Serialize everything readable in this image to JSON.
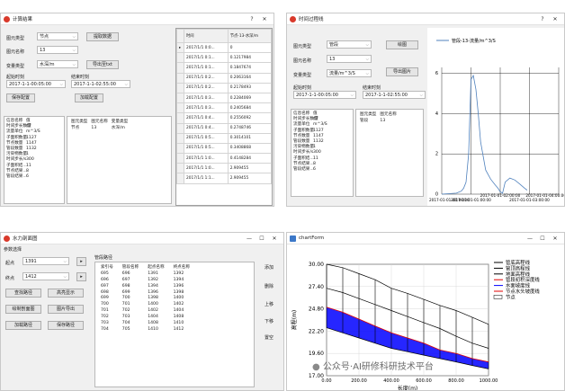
{
  "calc_window": {
    "title": "计算结果",
    "help": "?",
    "close": "✕",
    "element_type_label": "图元类型",
    "element_type_value": "节点",
    "extract_label": "提取数据",
    "element_name_label": "图元名称",
    "element_name_value": "13",
    "variable_label": "变量类型",
    "variable_value": "水深/m",
    "export_label": "导出至txt",
    "start_label": "起始时刻",
    "start_value": "2017-1-1-00:05:00",
    "end_label": "结束时刻",
    "end_value": "2017-1-1-02:55:00",
    "save_label": "保存配置",
    "load_label": "加载配置",
    "info": [
      {
        "k": "信息名称",
        "v": "值"
      },
      {
        "k": "时间步长数量",
        "v": "47"
      },
      {
        "k": "流量单位",
        "v": "m^3/S"
      },
      {
        "k": "子面积数量",
        "v": "1127"
      },
      {
        "k": "节点数量",
        "v": "1147"
      },
      {
        "k": "管段数量",
        "v": "1132"
      },
      {
        "k": "污染物数量",
        "v": "1"
      },
      {
        "k": "时间步长/s",
        "v": "300"
      },
      {
        "k": "子面积结...",
        "v": "11"
      },
      {
        "k": "节点结果...",
        "v": "8"
      },
      {
        "k": "管段结果...",
        "v": "6"
      }
    ],
    "sel_headers": [
      "图元类型",
      "图元名称",
      "变量类型"
    ],
    "sel_row": [
      "节点",
      "13",
      "水深/m"
    ],
    "table_headers": [
      "时间",
      "节点-13-水深/m"
    ],
    "table_rows": [
      [
        "2017/1/1 0:0...",
        "0"
      ],
      [
        "2017/1/1 0:1...",
        "0.1217984"
      ],
      [
        "2017/1/1 0:1...",
        "0.1847674"
      ],
      [
        "2017/1/1 0:2...",
        "0.2063164"
      ],
      [
        "2017/1/1 0:2...",
        "0.2178493"
      ],
      [
        "2017/1/1 0:3...",
        "0.2284069"
      ],
      [
        "2017/1/1 0:3...",
        "0.2405684"
      ],
      [
        "2017/1/1 0:4...",
        "0.2556092"
      ],
      [
        "2017/1/1 0:4...",
        "0.2748746"
      ],
      [
        "2017/1/1 0:5...",
        "0.3014101"
      ],
      [
        "2017/1/1 0:5...",
        "0.3408868"
      ],
      [
        "2017/1/1 1:0...",
        "0.4148284"
      ],
      [
        "2017/1/1 1:0...",
        "2.909455"
      ],
      [
        "2017/1/1 1:1...",
        "2.909455"
      ]
    ]
  },
  "ts_window": {
    "title": "时间过程线",
    "help": "?",
    "close": "✕",
    "element_type_label": "图元类型",
    "element_type_value": "管段",
    "plot_label": "绘图",
    "element_name_label": "图元名称",
    "element_name_value": "13",
    "variable_label": "变量类型",
    "variable_value": "流量/m^3/S",
    "export_label": "导出图片",
    "start_label": "起始时刻",
    "start_value": "2017-1-1-00:05:00",
    "end_label": "结束时刻",
    "end_value": "2017-1-1-02:55:00",
    "info": [
      {
        "k": "信息名称",
        "v": "值"
      },
      {
        "k": "时间步长数量",
        "v": "47"
      },
      {
        "k": "流量单位",
        "v": "m^3/S"
      },
      {
        "k": "子面积数量",
        "v": "1127"
      },
      {
        "k": "节点数量",
        "v": "1147"
      },
      {
        "k": "管段数量",
        "v": "1132"
      },
      {
        "k": "污染物数量",
        "v": "1"
      },
      {
        "k": "时间步长/s",
        "v": "300"
      },
      {
        "k": "子面积结...",
        "v": "11"
      },
      {
        "k": "节点结果...",
        "v": "8"
      },
      {
        "k": "管段结果...",
        "v": "6"
      }
    ],
    "sel_headers": [
      "图元类型",
      "图元名称"
    ],
    "sel_row": [
      "管段",
      "13"
    ]
  },
  "profile_window": {
    "title": "水力剖面图",
    "min": "—",
    "max": "☐",
    "close": "✕",
    "param_label": "参数选择",
    "start_label": "起点",
    "start_value": "1391",
    "end_label": "终点",
    "end_value": "1412",
    "find_label": "查找路径",
    "highlight_label": "高亮显示",
    "draw_label": "绘制剖面图",
    "export_label": "图片导出",
    "load_label": "加载路径",
    "save_label": "保存路径",
    "path_label": "管段路径",
    "headers": [
      "索引号",
      "管段名称",
      "起点名称",
      "终点名称"
    ],
    "rows": [
      [
        "695",
        "696",
        "1391",
        "1392"
      ],
      [
        "696",
        "697",
        "1392",
        "1394"
      ],
      [
        "697",
        "698",
        "1394",
        "1396"
      ],
      [
        "698",
        "699",
        "1396",
        "1398"
      ],
      [
        "699",
        "700",
        "1398",
        "1400"
      ],
      [
        "700",
        "701",
        "1400",
        "1402"
      ],
      [
        "701",
        "702",
        "1402",
        "1404"
      ],
      [
        "702",
        "703",
        "1404",
        "1408"
      ],
      [
        "703",
        "704",
        "1408",
        "1410"
      ],
      [
        "704",
        "705",
        "1410",
        "1412"
      ]
    ],
    "add": "添加",
    "delete": "删除",
    "up": "上移",
    "down": "下移",
    "clear": "置空"
  },
  "chart_window": {
    "title": "chartForm",
    "min": "—",
    "max": "☐",
    "close": "✕",
    "watermark": "公众号·AI研修科研技术平台"
  },
  "colors": {
    "accent": "#0078d7",
    "red": "#e00000",
    "blue": "#0000ff",
    "ts_line": "#4f81bd"
  },
  "chart_data": [
    {
      "type": "line",
      "legend": [
        "管段-13-流量/m^3/S"
      ],
      "y_ticks": [
        0,
        2,
        4,
        6
      ],
      "ylim": [
        0,
        6.3
      ],
      "x_ticks": [
        "2017-01-01-00:00:00",
        "2017-01-01-01:00:00",
        "2017-01-01-02:00:00",
        "2017-01-01-03:00:00",
        "2017-01-01-04:00:00"
      ],
      "x_hours": [
        0,
        0.5,
        0.67,
        0.75,
        0.83,
        0.92,
        1.0,
        1.08,
        1.17,
        1.25,
        1.33,
        1.5,
        1.67,
        1.83,
        1.92,
        2.0,
        2.08,
        2.17,
        2.33,
        2.5,
        2.67,
        2.83,
        2.92
      ],
      "values": [
        0,
        0.05,
        0.15,
        0.3,
        0.6,
        2.0,
        5.7,
        5.9,
        5.2,
        4.0,
        2.6,
        1.2,
        0.75,
        0.45,
        0.3,
        0.12,
        0.05,
        0.6,
        0.8,
        0.7,
        0.5,
        0.3,
        0.2
      ]
    },
    {
      "type": "line",
      "ylabel": "高程(m)",
      "xlabel": "长度(m)",
      "y_ticks": [
        17.0,
        19.6,
        22.2,
        24.8,
        27.4,
        30.0
      ],
      "ylim": [
        17.0,
        30.0
      ],
      "x_ticks": [
        0,
        200,
        400,
        600,
        800,
        1000
      ],
      "xlim": [
        0,
        1000
      ],
      "legend": [
        "管底高程线",
        "管顶高程线",
        "地面高程线",
        "管段初积深度线",
        "水面坡度线",
        "节点水头坡度线",
        "节点"
      ],
      "legend_colors": [
        "#000000",
        "#000000",
        "#000000",
        "#e00000",
        "#0000ff",
        "#e00000",
        "#ffffff"
      ],
      "x": [
        0,
        100,
        200,
        300,
        400,
        500,
        600,
        700,
        800,
        900,
        1000
      ],
      "ground": [
        30.0,
        29.6,
        28.9,
        28.2,
        27.2,
        26.6,
        25.9,
        25.2,
        24.6,
        23.8,
        23.0
      ],
      "pipe_top": [
        27.2,
        26.7,
        26.0,
        25.3,
        24.6,
        23.9,
        23.2,
        22.5,
        21.6,
        20.8,
        20.2
      ],
      "water": [
        25.0,
        24.4,
        23.6,
        22.8,
        22.0,
        21.4,
        20.8,
        20.0,
        19.6,
        19.0,
        18.6
      ],
      "pipe_bottom": [
        22.6,
        22.0,
        21.4,
        20.8,
        20.2,
        19.8,
        19.4,
        19.0,
        18.6,
        18.2,
        17.8
      ]
    }
  ]
}
